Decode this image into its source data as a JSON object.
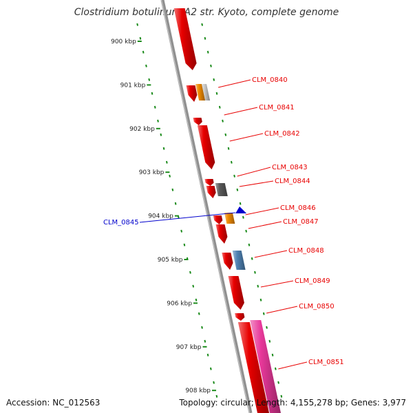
{
  "title": "Clostridium botulinum A2 str. Kyoto, complete genome",
  "footer": {
    "accession": "Accession: NC_012563",
    "summary": "Topology: circular; Length: 4,155,278 bp; Genes: 3,977"
  },
  "colors": {
    "forward_gene": "#e80000",
    "reverse_gene": "#0000cc",
    "orange_gene": "#f08a00",
    "gray_gene": "#5a5a5a",
    "lightgray_gene": "#c8c8c8",
    "steelblue_gene": "#4f82b4",
    "pink_gene": "#e8389a",
    "tick_color": "#1a8a1a",
    "backbone": "#909090"
  },
  "scale": [
    "900 kbp",
    "901 kbp",
    "902 kbp",
    "903 kbp",
    "904 kbp",
    "905 kbp",
    "906 kbp",
    "907 kbp",
    "908 kbp"
  ],
  "gene_labels": [
    {
      "name": "CLM_0840",
      "strand": "forward"
    },
    {
      "name": "CLM_0841",
      "strand": "forward"
    },
    {
      "name": "CLM_0842",
      "strand": "forward"
    },
    {
      "name": "CLM_0843",
      "strand": "forward"
    },
    {
      "name": "CLM_0844",
      "strand": "forward"
    },
    {
      "name": "CLM_0845",
      "strand": "reverse"
    },
    {
      "name": "CLM_0846",
      "strand": "forward"
    },
    {
      "name": "CLM_0847",
      "strand": "forward"
    },
    {
      "name": "CLM_0848",
      "strand": "forward"
    },
    {
      "name": "CLM_0849",
      "strand": "forward"
    },
    {
      "name": "CLM_0850",
      "strand": "forward"
    },
    {
      "name": "CLM_0851",
      "strand": "forward"
    }
  ]
}
